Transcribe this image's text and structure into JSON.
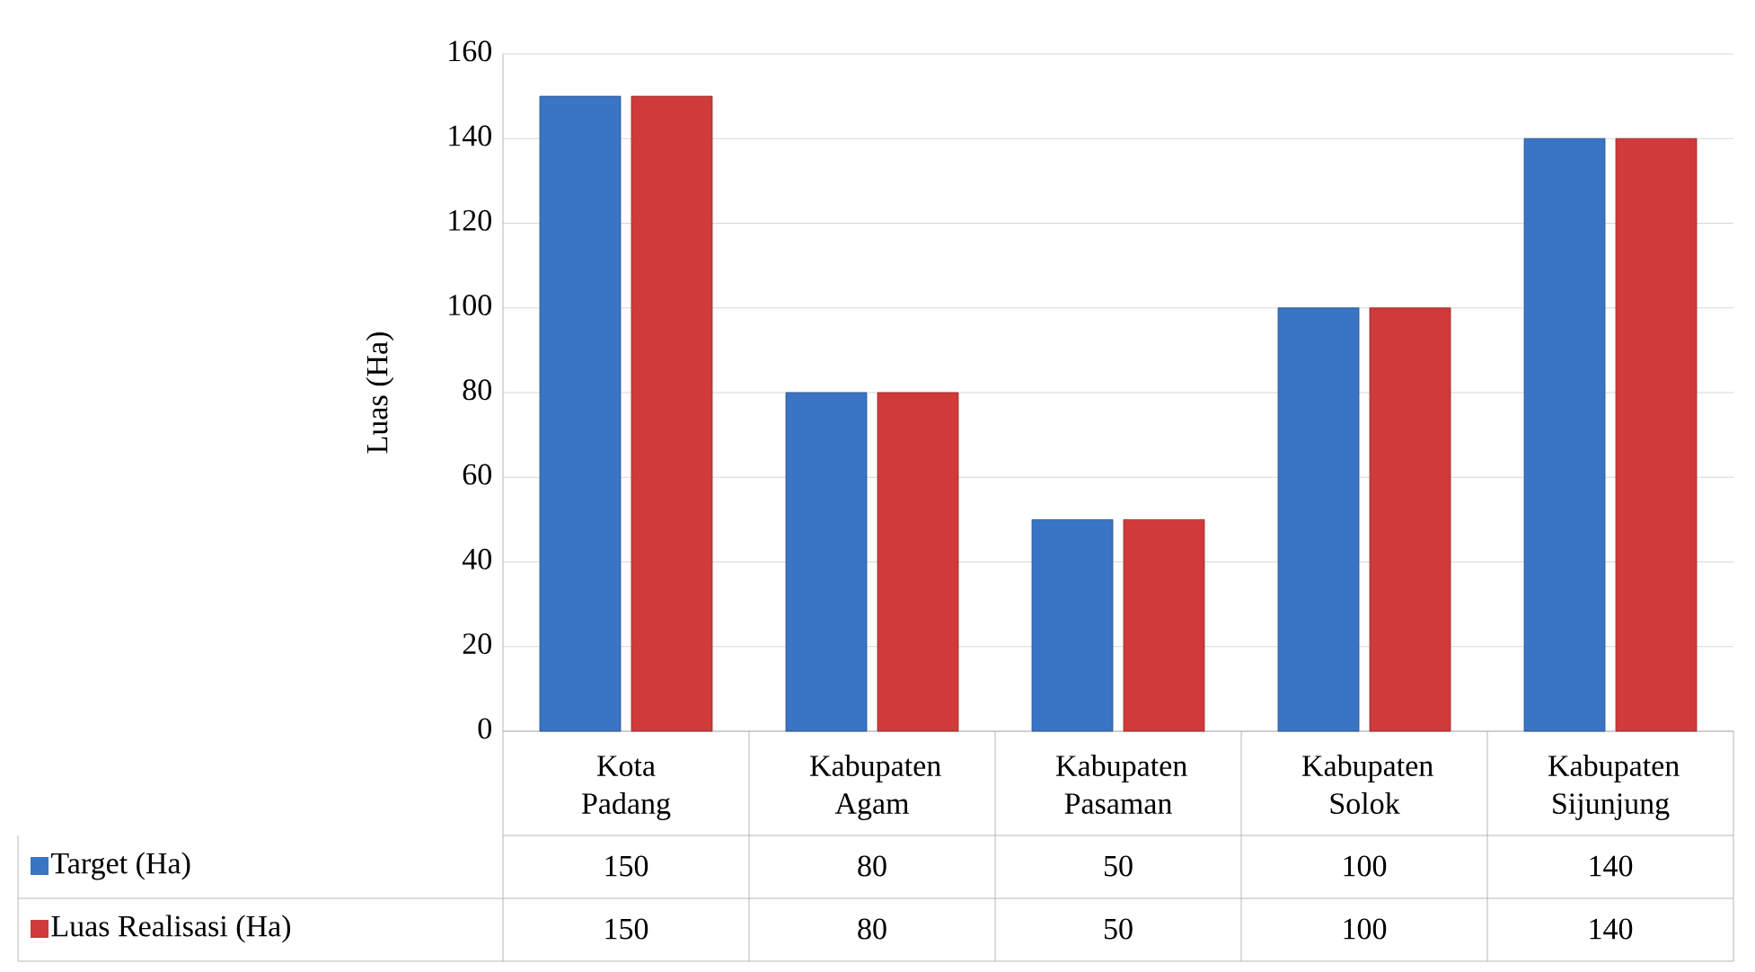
{
  "chart_data": {
    "type": "bar",
    "ylabel": "Luas (Ha)",
    "categories": [
      "Kota Padang",
      "Kabupaten Agam",
      "Kabupaten Pasaman",
      "Kabupaten Solok",
      "Kabupaten Sijunjung"
    ],
    "series": [
      {
        "name": "Target (Ha)",
        "color": "#3a74c4",
        "values": [
          150,
          80,
          50,
          100,
          140
        ]
      },
      {
        "name": "Luas Realisasi (Ha)",
        "color": "#d03a3a",
        "values": [
          150,
          80,
          50,
          100,
          140
        ]
      }
    ],
    "ylim": [
      0,
      160
    ],
    "yticks": [
      0,
      20,
      40,
      60,
      80,
      100,
      120,
      140,
      160
    ],
    "grid": "y",
    "legend": "bottom",
    "data_labels": true
  }
}
